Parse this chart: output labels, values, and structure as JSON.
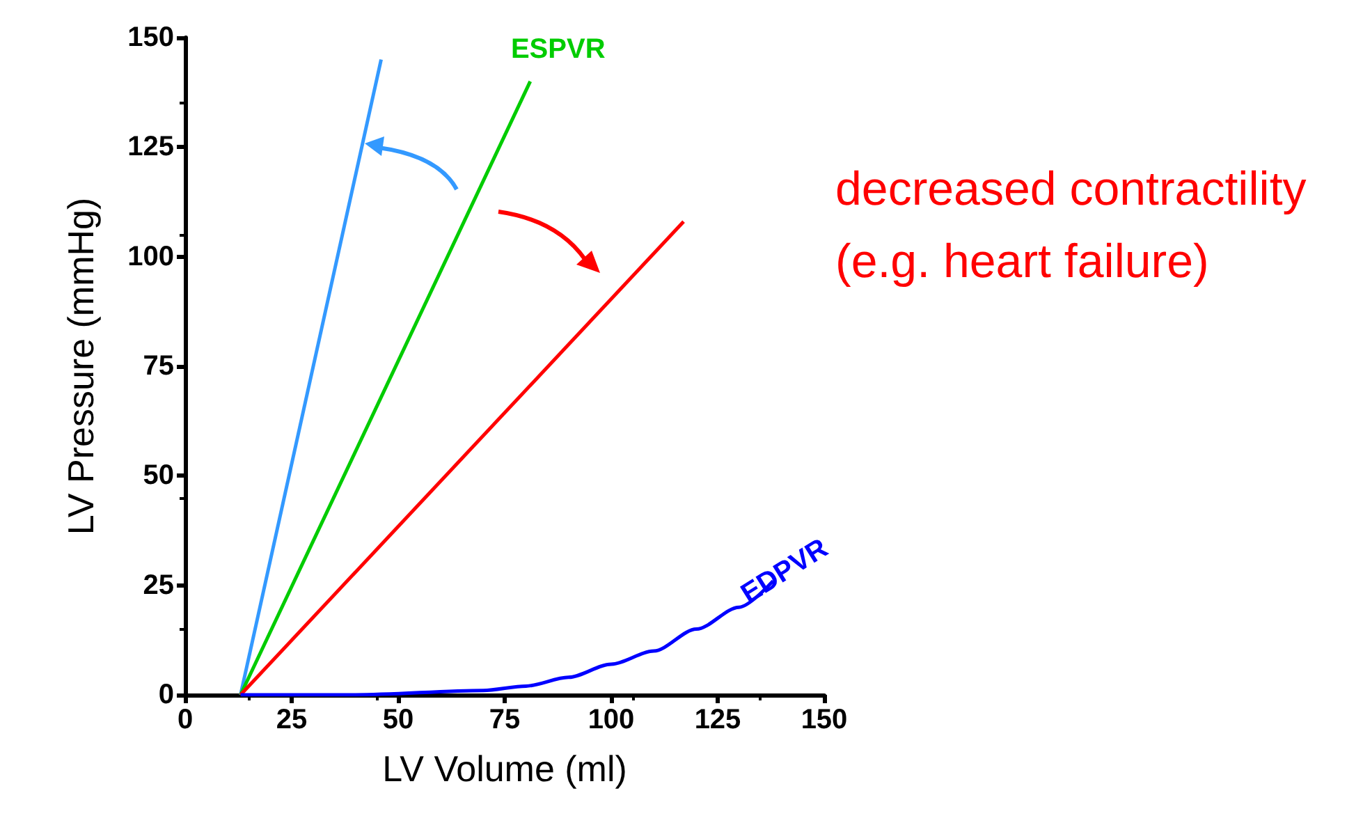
{
  "chart_data": {
    "type": "line",
    "xlabel": "LV Volume (ml)",
    "ylabel": "LV Pressure (mmHg)",
    "xlim": [
      0,
      150
    ],
    "xticks": [
      0,
      25,
      50,
      75,
      100,
      125,
      150
    ],
    "ylim": [
      0,
      150
    ],
    "yticks": [
      0,
      25,
      50,
      75,
      100,
      125,
      150
    ],
    "grid": false,
    "legend": false,
    "marker": "none",
    "line_style": "solid",
    "annotations": [
      "decreased contractility\n(e.g. heart failure)"
    ],
    "series": [
      {
        "color": "#3399ff",
        "x": [
          13,
          46
        ],
        "values": [
          0,
          145
        ]
      },
      {
        "name": "ESPVR",
        "color": "#00cc00",
        "x": [
          13,
          81
        ],
        "values": [
          0,
          140
        ]
      },
      {
        "color": "#ff0000",
        "x": [
          13,
          117
        ],
        "values": [
          0,
          108
        ]
      },
      {
        "name": "EDPVR",
        "color": "#0000ff",
        "x": [
          13,
          40,
          70,
          80,
          90,
          100,
          110,
          120,
          130,
          138
        ],
        "values": [
          0,
          0,
          1,
          2,
          4,
          7,
          10,
          15,
          20,
          26
        ]
      }
    ]
  }
}
